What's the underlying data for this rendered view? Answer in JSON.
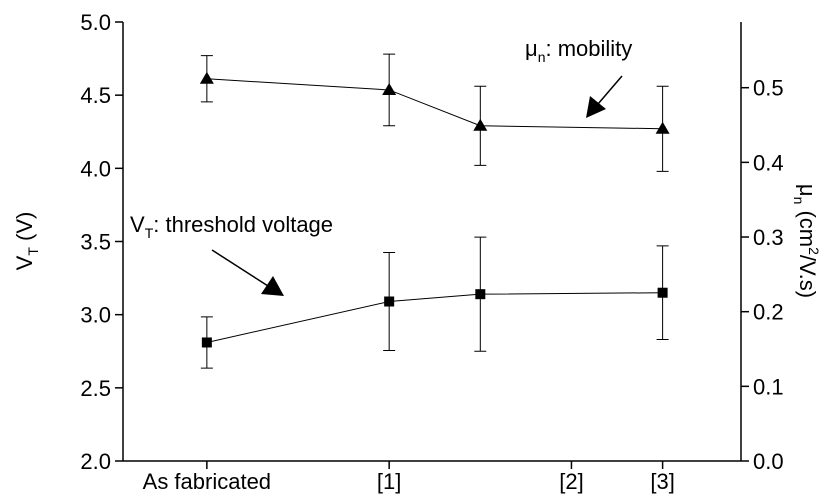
{
  "chart_data": {
    "type": "line",
    "y_label": {
      "symbol": "V",
      "sub": "T",
      "rest": " (V)"
    },
    "y2_label": {
      "symbol": "μ",
      "sub": "n",
      "pre": " (cm",
      "sup": "2",
      "post": "/V.s)"
    },
    "annotations": [
      {
        "symbol": "μ",
        "sub": "n",
        "text": ": mobility"
      },
      {
        "symbol": "V",
        "sub": "T",
        "text": ": threshold voltage"
      }
    ],
    "x": [
      0,
      1,
      1.5,
      2.5
    ],
    "xlim": [
      -0.46,
      2.93
    ],
    "xticks": [
      {
        "value": 0,
        "label": "As fabricated"
      },
      {
        "value": 1,
        "label": "[1]"
      },
      {
        "value": 2,
        "label": "[2]"
      },
      {
        "value": 2.5,
        "label": "[3]"
      }
    ],
    "ylim": [
      2.0,
      5.0
    ],
    "yticks": [
      {
        "value": 2,
        "label": "2.0"
      },
      2.5,
      {
        "value": 3,
        "label": "3.0"
      },
      3.5,
      {
        "value": 4,
        "label": "4.0"
      },
      4.5,
      {
        "value": 5,
        "label": "5.0"
      }
    ],
    "y2lim": [
      0,
      0.588
    ],
    "y2ticks": [
      {
        "value": 0,
        "label": "0.0"
      },
      0.1,
      0.2,
      0.3,
      0.4,
      0.5
    ],
    "series": [
      {
        "color": "#000000",
        "marker": "triangle",
        "axis": "y2",
        "values": [
          0.512,
          0.497,
          0.449,
          0.445
        ],
        "errors": [
          0.031,
          0.048,
          0.053,
          0.057
        ]
      },
      {
        "color": "#000000",
        "marker": "square",
        "axis": "y",
        "values": [
          2.81,
          3.09,
          3.14,
          3.15
        ],
        "errors": [
          0.175,
          0.335,
          0.39,
          0.32
        ]
      }
    ]
  }
}
